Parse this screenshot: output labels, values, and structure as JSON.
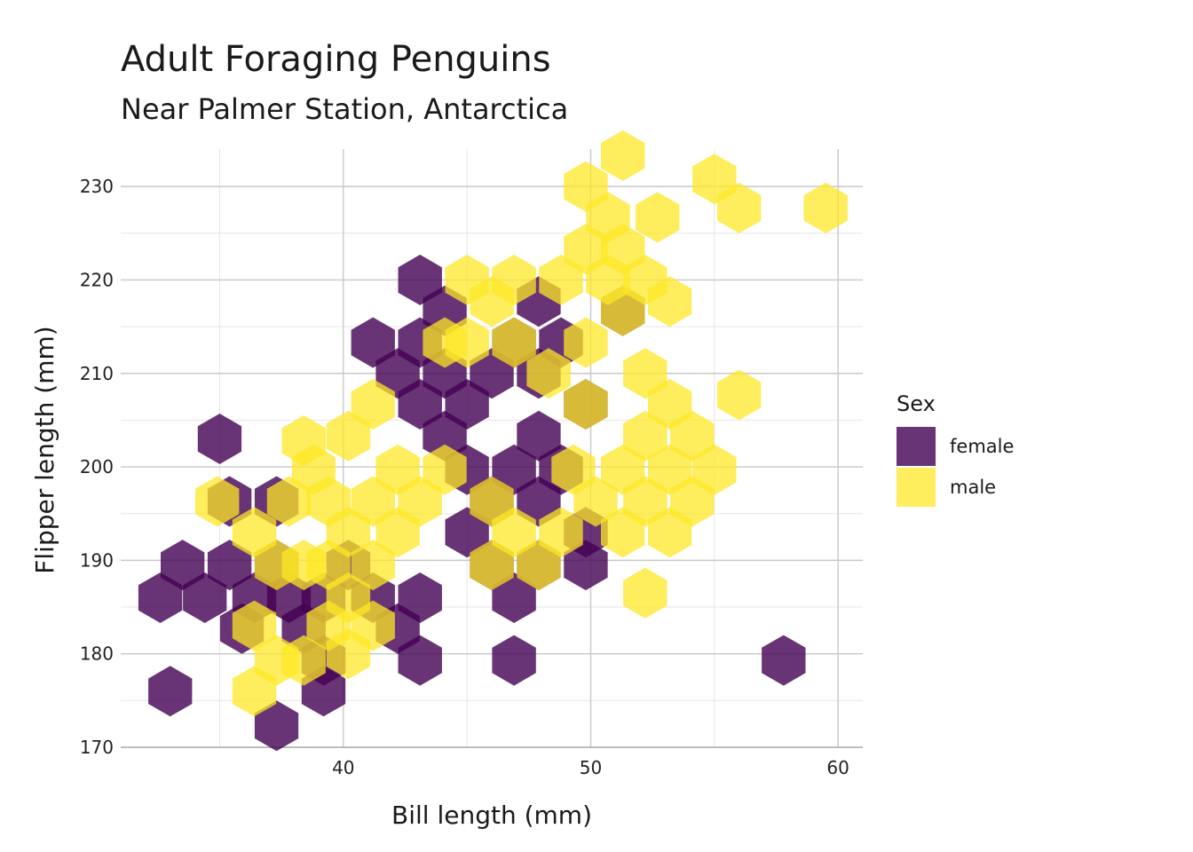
{
  "chart_data": {
    "type": "hexbin",
    "title": "Adult Foraging Penguins",
    "subtitle": "Near Palmer Station, Antarctica",
    "xlabel": "Bill length (mm)",
    "ylabel": "Flipper length (mm)",
    "xlim": [
      31,
      61
    ],
    "ylim": [
      170,
      234
    ],
    "x_ticks": [
      40,
      50,
      60
    ],
    "x_tick_labels": [
      "40",
      "50",
      "60"
    ],
    "y_ticks": [
      170,
      180,
      190,
      200,
      210,
      220,
      230
    ],
    "y_tick_labels": [
      "170",
      "180",
      "190",
      "200",
      "210",
      "220",
      "230"
    ],
    "grid": true,
    "legend": {
      "title": "Sex",
      "position": "right",
      "entries": [
        {
          "label": "female",
          "color": "#440154"
        },
        {
          "label": "male",
          "color": "#FDE725"
        }
      ]
    },
    "series": [
      {
        "name": "female",
        "color": "#440154",
        "opacity": 0.8,
        "bins": [
          [
            32.6,
            186.0
          ],
          [
            33.5,
            189.5
          ],
          [
            33.0,
            176.0
          ],
          [
            34.4,
            186.0
          ],
          [
            35.4,
            189.5
          ],
          [
            35.9,
            182.7
          ],
          [
            35.0,
            203.0
          ],
          [
            35.4,
            196.3
          ],
          [
            36.4,
            186.0
          ],
          [
            37.3,
            189.5
          ],
          [
            37.3,
            196.3
          ],
          [
            37.8,
            186.0
          ],
          [
            37.3,
            172.3
          ],
          [
            38.4,
            182.7
          ],
          [
            39.2,
            186.0
          ],
          [
            39.2,
            179.3
          ],
          [
            40.2,
            189.5
          ],
          [
            39.2,
            176.0
          ],
          [
            41.2,
            186.0
          ],
          [
            42.2,
            182.7
          ],
          [
            43.1,
            186.0
          ],
          [
            43.1,
            179.3
          ],
          [
            41.2,
            213.3
          ],
          [
            42.2,
            210.0
          ],
          [
            43.1,
            213.3
          ],
          [
            43.1,
            220.0
          ],
          [
            44.1,
            216.7
          ],
          [
            43.1,
            206.7
          ],
          [
            44.1,
            210.0
          ],
          [
            45.0,
            206.7
          ],
          [
            44.1,
            203.3
          ],
          [
            45.0,
            199.7
          ],
          [
            45.0,
            193.0
          ],
          [
            46.0,
            210.0
          ],
          [
            46.0,
            196.3
          ],
          [
            46.0,
            189.5
          ],
          [
            46.9,
            213.3
          ],
          [
            46.9,
            199.7
          ],
          [
            46.9,
            186.0
          ],
          [
            46.9,
            179.3
          ],
          [
            47.9,
            217.7
          ],
          [
            47.9,
            210.0
          ],
          [
            47.9,
            203.3
          ],
          [
            47.9,
            196.3
          ],
          [
            47.9,
            189.5
          ],
          [
            48.8,
            213.3
          ],
          [
            48.8,
            199.7
          ],
          [
            49.8,
            189.5
          ],
          [
            49.8,
            193.0
          ],
          [
            49.8,
            206.7
          ],
          [
            51.3,
            216.7
          ],
          [
            57.8,
            179.3
          ]
        ]
      },
      {
        "name": "male",
        "color": "#FDE725",
        "opacity": 0.75,
        "bins": [
          [
            34.9,
            196.3
          ],
          [
            36.4,
            193.0
          ],
          [
            37.3,
            189.5
          ],
          [
            37.8,
            196.3
          ],
          [
            38.8,
            199.7
          ],
          [
            38.4,
            189.5
          ],
          [
            36.4,
            183.0
          ],
          [
            37.3,
            179.3
          ],
          [
            36.4,
            176.0
          ],
          [
            38.4,
            202.8
          ],
          [
            39.4,
            196.3
          ],
          [
            39.4,
            189.5
          ],
          [
            39.4,
            183.0
          ],
          [
            38.4,
            179.3
          ],
          [
            40.2,
            203.3
          ],
          [
            40.2,
            193.0
          ],
          [
            40.2,
            186.0
          ],
          [
            41.2,
            196.3
          ],
          [
            41.2,
            189.5
          ],
          [
            41.2,
            206.7
          ],
          [
            42.2,
            199.7
          ],
          [
            42.2,
            193.0
          ],
          [
            41.2,
            183.0
          ],
          [
            40.2,
            180.0
          ],
          [
            43.1,
            196.3
          ],
          [
            44.1,
            199.7
          ],
          [
            44.1,
            213.3
          ],
          [
            45.0,
            220.0
          ],
          [
            45.0,
            213.3
          ],
          [
            46.0,
            217.7
          ],
          [
            46.0,
            196.3
          ],
          [
            46.0,
            189.5
          ],
          [
            46.9,
            220.0
          ],
          [
            46.9,
            213.3
          ],
          [
            46.9,
            193.0
          ],
          [
            47.9,
            189.5
          ],
          [
            48.3,
            210.0
          ],
          [
            48.8,
            220.0
          ],
          [
            48.8,
            193.0
          ],
          [
            49.8,
            213.3
          ],
          [
            49.8,
            223.3
          ],
          [
            49.8,
            230.0
          ],
          [
            50.7,
            226.7
          ],
          [
            50.7,
            220.0
          ],
          [
            49.8,
            206.7
          ],
          [
            49.3,
            199.7
          ],
          [
            50.2,
            196.3
          ],
          [
            51.3,
            233.3
          ],
          [
            51.3,
            223.3
          ],
          [
            51.3,
            216.7
          ],
          [
            51.3,
            199.7
          ],
          [
            51.3,
            193.0
          ],
          [
            52.2,
            220.0
          ],
          [
            52.2,
            210.0
          ],
          [
            52.2,
            203.3
          ],
          [
            52.2,
            196.3
          ],
          [
            52.7,
            226.7
          ],
          [
            53.2,
            206.7
          ],
          [
            53.2,
            199.7
          ],
          [
            53.2,
            193.0
          ],
          [
            54.1,
            203.3
          ],
          [
            53.2,
            217.7
          ],
          [
            52.2,
            186.5
          ],
          [
            54.1,
            196.3
          ],
          [
            55.0,
            199.7
          ],
          [
            55.0,
            230.8
          ],
          [
            56.0,
            227.7
          ],
          [
            56.0,
            207.7
          ],
          [
            59.5,
            227.7
          ]
        ]
      }
    ]
  }
}
